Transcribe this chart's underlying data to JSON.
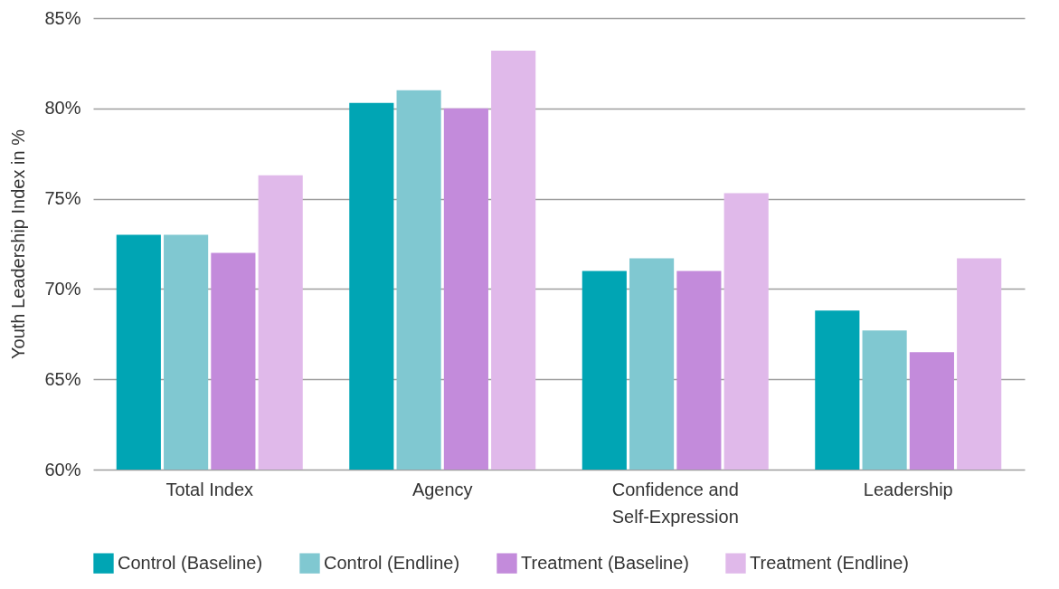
{
  "chart_data": {
    "type": "bar",
    "ylabel": "Youth Leadership Index in %",
    "categories": [
      "Total Index",
      "Agency",
      "Confidence and Self-Expression",
      "Leadership"
    ],
    "series": [
      {
        "name": "Control (Baseline)",
        "color": "#00a5b4",
        "values": [
          73.0,
          80.3,
          71.0,
          68.8
        ]
      },
      {
        "name": "Control (Endline)",
        "color": "#80c8d1",
        "values": [
          73.0,
          81.0,
          71.7,
          67.7
        ]
      },
      {
        "name": "Treatment (Baseline)",
        "color": "#c38bdb",
        "values": [
          72.0,
          80.0,
          71.0,
          66.5
        ]
      },
      {
        "name": "Treatment (Endline)",
        "color": "#e0b9ea",
        "values": [
          76.3,
          83.2,
          75.3,
          71.7
        ]
      }
    ],
    "ylim": [
      60,
      85
    ],
    "yticks": [
      {
        "value": 60,
        "label": "60%"
      },
      {
        "value": 65,
        "label": "65%"
      },
      {
        "value": 70,
        "label": "70%"
      },
      {
        "value": 75,
        "label": "75%"
      },
      {
        "value": 80,
        "label": "80%"
      },
      {
        "value": 85,
        "label": "85%"
      }
    ],
    "grid": "y",
    "legend": "bottom"
  }
}
